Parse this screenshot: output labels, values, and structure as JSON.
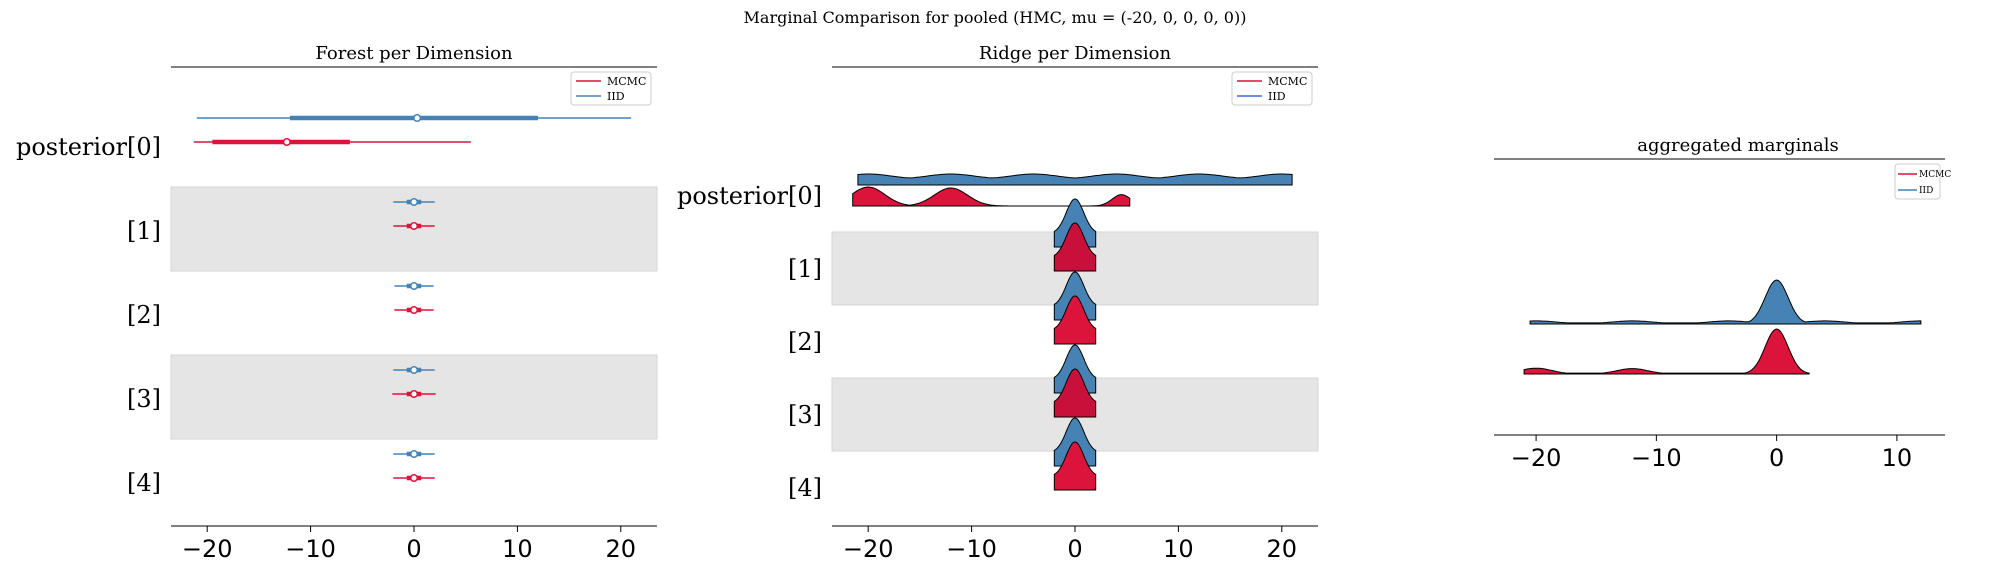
{
  "figure": {
    "suptitle": "Marginal Comparison for pooled (HMC, mu = (-20, 0, 0, 0, 0))"
  },
  "colors": {
    "mcmc": "#dc143c",
    "iid": "#4682b4",
    "band": "#e5e5e5",
    "ridge_edge": "#000000"
  },
  "legend": {
    "mcmc": "MCMC",
    "iid": "IID"
  },
  "xticks": [
    "−20",
    "−10",
    "0",
    "10",
    "20"
  ],
  "agg_xticks": [
    "−20",
    "−10",
    "0",
    "10"
  ],
  "chart_data": [
    {
      "type": "forest",
      "title": "Forest per Dimension",
      "xlim": [
        -23.5,
        23.5
      ],
      "xticks": [
        -20,
        -10,
        0,
        10,
        20
      ],
      "rows": [
        "posterior[0]",
        "[1]",
        "[2]",
        "[3]",
        "[4]"
      ],
      "shaded_rows": [
        1,
        3
      ],
      "legend_position": "top-right",
      "series": [
        {
          "name": "IID",
          "color": "#4682b4",
          "points": [
            {
              "median": 0.3,
              "hdi_50": [
                -12,
                12
              ],
              "hdi_94": [
                -21,
                21
              ]
            },
            {
              "median": 0.0,
              "hdi_50": [
                -0.7,
                0.7
              ],
              "hdi_94": [
                -2.0,
                2.0
              ]
            },
            {
              "median": 0.0,
              "hdi_50": [
                -0.7,
                0.7
              ],
              "hdi_94": [
                -1.9,
                1.9
              ]
            },
            {
              "median": 0.0,
              "hdi_50": [
                -0.7,
                0.7
              ],
              "hdi_94": [
                -2.0,
                2.0
              ]
            },
            {
              "median": 0.0,
              "hdi_50": [
                -0.7,
                0.7
              ],
              "hdi_94": [
                -2.0,
                2.0
              ]
            }
          ]
        },
        {
          "name": "MCMC",
          "color": "#dc143c",
          "points": [
            {
              "median": -12.3,
              "hdi_50": [
                -19.5,
                -6.2
              ],
              "hdi_94": [
                -21.3,
                5.5
              ]
            },
            {
              "median": 0.0,
              "hdi_50": [
                -0.7,
                0.7
              ],
              "hdi_94": [
                -2.0,
                2.0
              ]
            },
            {
              "median": 0.0,
              "hdi_50": [
                -0.7,
                0.7
              ],
              "hdi_94": [
                -1.9,
                1.9
              ]
            },
            {
              "median": 0.0,
              "hdi_50": [
                -0.7,
                0.7
              ],
              "hdi_94": [
                -2.1,
                2.1
              ]
            },
            {
              "median": 0.0,
              "hdi_50": [
                -0.7,
                0.7
              ],
              "hdi_94": [
                -2.0,
                2.0
              ]
            }
          ]
        }
      ]
    },
    {
      "type": "ridge",
      "title": "Ridge per Dimension",
      "xlim": [
        -23.5,
        23.5
      ],
      "xticks": [
        -20,
        -10,
        0,
        10,
        20
      ],
      "rows": [
        "posterior[0]",
        "[1]",
        "[2]",
        "[3]",
        "[4]"
      ],
      "shaded_rows": [
        1,
        3
      ],
      "legend_position": "top-right",
      "series": [
        {
          "name": "IID",
          "color": "#4682b4",
          "row0_range": [
            -21,
            21
          ],
          "row0_modes": [
            -20,
            -12,
            -4,
            4,
            12,
            20
          ],
          "other_rows_range": [
            -2,
            2
          ]
        },
        {
          "name": "MCMC",
          "color": "#dc143c",
          "row0_range": [
            -21.5,
            5.3
          ],
          "row0_modes": [
            -20,
            -12,
            4.5
          ],
          "other_rows_range": [
            -2,
            2
          ]
        }
      ]
    },
    {
      "type": "area",
      "title": "aggregated marginals",
      "xlim": [
        -23.5,
        14
      ],
      "xticks": [
        -20,
        -10,
        0,
        10
      ],
      "legend_position": "top-right",
      "series": [
        {
          "name": "IID",
          "color": "#4682b4",
          "range": [
            -20.5,
            12
          ],
          "main_peak": 0,
          "minor_modes": [
            -20,
            -12,
            -4,
            4,
            12
          ]
        },
        {
          "name": "MCMC",
          "color": "#dc143c",
          "range": [
            -21,
            2.7
          ],
          "main_peak": 0,
          "minor_modes": [
            -20,
            -12
          ]
        }
      ]
    }
  ]
}
